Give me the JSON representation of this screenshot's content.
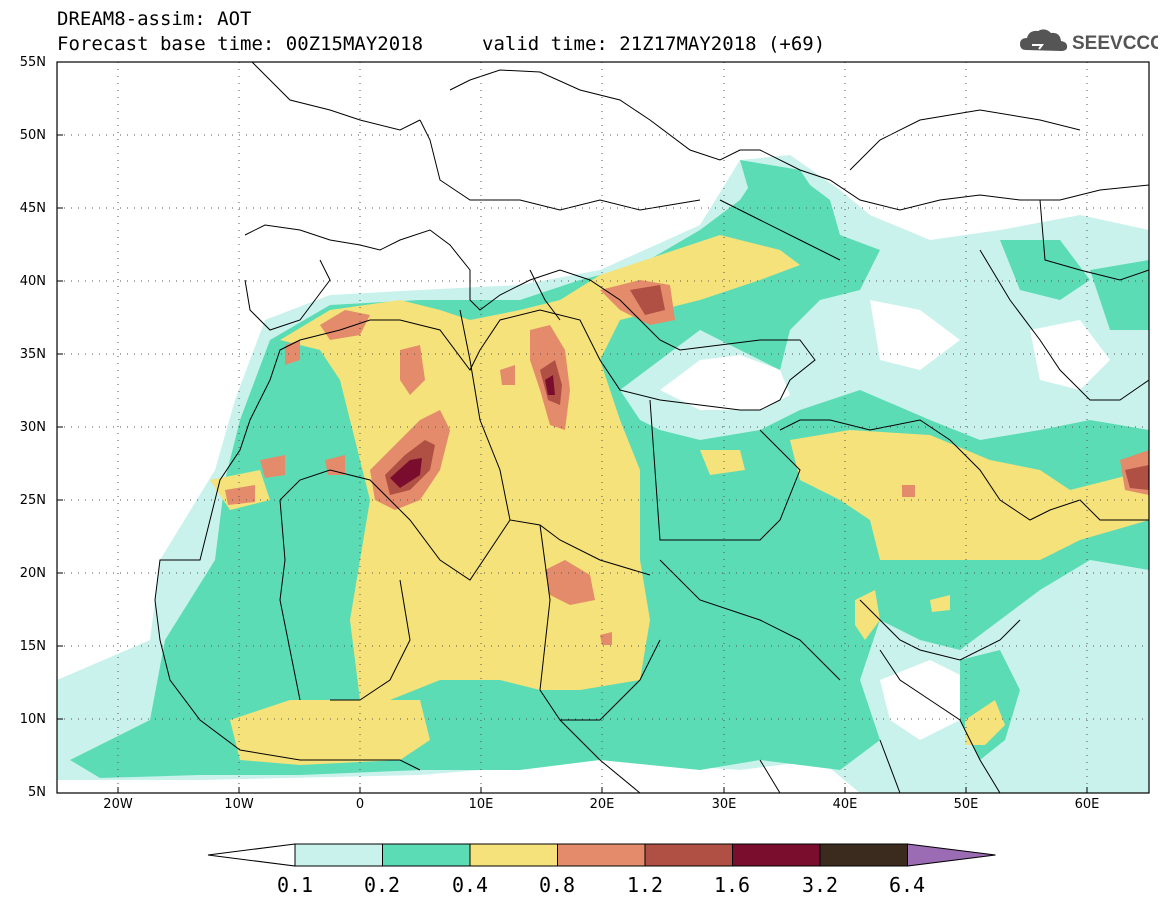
{
  "header": {
    "title_line1": "DREAM8-assim: AOT",
    "title_line2": "Forecast base time: 00Z15MAY2018",
    "valid_time": "valid time: 21Z17MAY2018 (+69)",
    "logo_text": "SEEVCCC",
    "logo_icon": "cloud-icon"
  },
  "map": {
    "lat_labels": [
      "55N",
      "50N",
      "45N",
      "40N",
      "35N",
      "30N",
      "25N",
      "20N",
      "15N",
      "10N",
      "5N"
    ],
    "lon_labels": [
      "20W",
      "10W",
      "0",
      "10E",
      "20E",
      "30E",
      "40E",
      "50E",
      "60E"
    ],
    "lat_range": [
      5,
      55
    ],
    "lon_range": [
      -25,
      65
    ],
    "grid": "dotted"
  },
  "colorbar": {
    "labels": [
      "0.1",
      "0.2",
      "0.4",
      "0.8",
      "1.2",
      "1.6",
      "3.2",
      "6.4"
    ],
    "colors": [
      "#c9f2ec",
      "#5cdcb4",
      "#f5e27a",
      "#e38b6a",
      "#b04f43",
      "#7a0d2e",
      "#3b2a1e",
      "#9b6bb3"
    ]
  }
}
